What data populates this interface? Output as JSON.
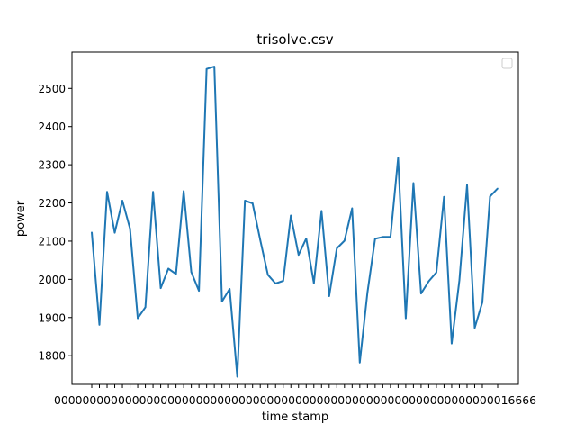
{
  "chart_data": {
    "type": "line",
    "title": "trisolve.csv",
    "xlabel": "time stamp",
    "ylabel": "power",
    "ylim": [
      1725,
      2595
    ],
    "y_ticks": [
      1800,
      1900,
      2000,
      2100,
      2200,
      2300,
      2400,
      2500
    ],
    "grid": false,
    "legend": "top-right (empty)",
    "x_tick_labels_overlapping": "00000000000000000000000000000000000000000000000000000000000000016666",
    "series": [
      {
        "color": "#1f77b4",
        "values": [
          2123,
          1881,
          2229,
          2122,
          2206,
          2133,
          1898,
          1927,
          2229,
          1977,
          2028,
          2014,
          2231,
          2019,
          1970,
          2551,
          2557,
          1942,
          1975,
          1745,
          2206,
          2199,
          2103,
          2012,
          1989,
          1996,
          2167,
          2064,
          2107,
          1990,
          2179,
          1956,
          2081,
          2101,
          2186,
          1782,
          1965,
          2106,
          2111,
          2111,
          2318,
          1898,
          2252,
          1963,
          1995,
          2018,
          2216,
          1832,
          1998,
          2247,
          1873,
          1940,
          2217,
          2238
        ]
      }
    ]
  }
}
